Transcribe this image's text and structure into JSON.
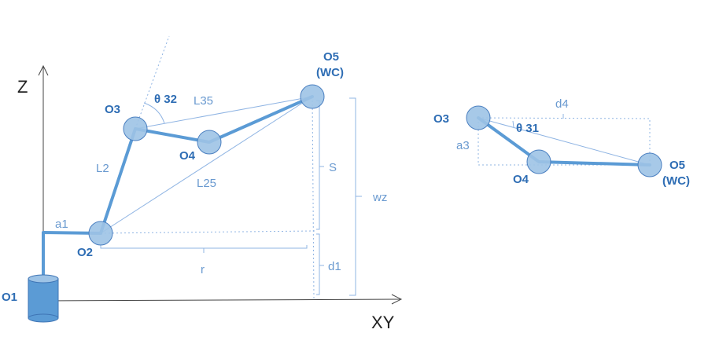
{
  "axes": {
    "z_label": "Z",
    "xy_label": "XY"
  },
  "left_view": {
    "joints": {
      "o1": "O1",
      "o2": "O2",
      "o3": "O3",
      "o4": "O4",
      "o5_line1": "O5",
      "o5_line2": "(WC)"
    },
    "links": {
      "a1": "a1",
      "l2": "L2",
      "l25": "L25",
      "l35": "L35"
    },
    "angle": "θ 32",
    "dimensions": {
      "r": "r",
      "s": "S",
      "d1": "d1",
      "wz": "wz"
    }
  },
  "right_view": {
    "joints": {
      "o3": "O3",
      "o4": "O4",
      "o5_line1": "O5",
      "o5_line2": "(WC)"
    },
    "dimensions": {
      "d4": "d4",
      "a3": "a3"
    },
    "angle": "θ 31"
  },
  "colors": {
    "link": "#5b9bd5",
    "joint_fill": "#9dc3e6",
    "joint_stroke": "#4a7fc0",
    "thin_line": "#8fb4e3",
    "label_bold": "#2e6db4",
    "label_light": "#6a9ad0",
    "axis": "#444444"
  }
}
